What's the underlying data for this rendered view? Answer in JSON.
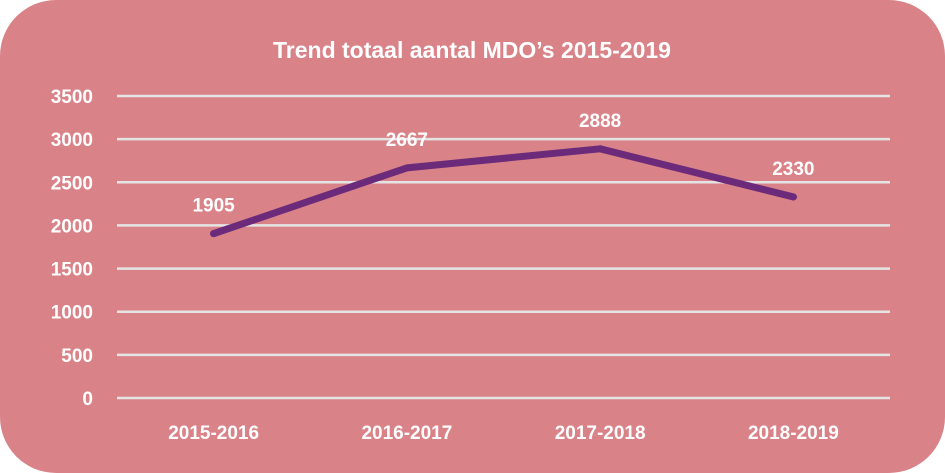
{
  "colors": {
    "background": "#d98389",
    "gridline": "#e4e4e4",
    "series_line": "#6b2b7a",
    "text": "#ffffff"
  },
  "chart_data": {
    "type": "line",
    "title": "Trend totaal aantal MDO’s  2015-2019",
    "xlabel": "",
    "ylabel": "",
    "categories": [
      "2015-2016",
      "2016-2017",
      "2017-2018",
      "2018-2019"
    ],
    "series": [
      {
        "values": [
          1905,
          2667,
          2888,
          2330
        ]
      }
    ],
    "data_labels": [
      "1905",
      "2667",
      "2888",
      "2330"
    ],
    "yticks": [
      "0",
      "500",
      "1000",
      "1500",
      "2000",
      "2500",
      "3000",
      "3500"
    ],
    "ylim": [
      0,
      3500
    ],
    "grid": true,
    "legend": "none"
  }
}
